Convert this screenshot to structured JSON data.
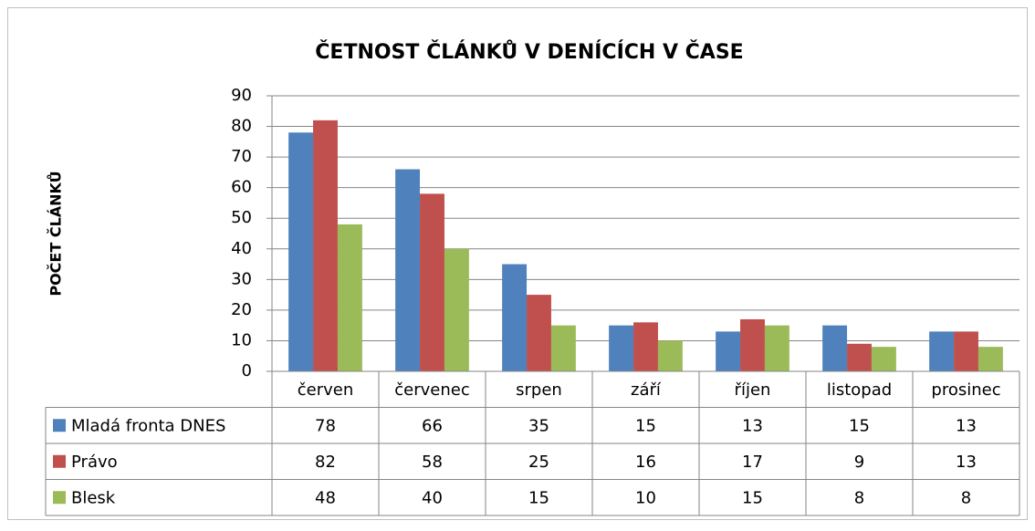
{
  "chart_data": {
    "type": "bar",
    "title": "ČETNOST ČLÁNKŮ V DENÍCÍCH V ČASE",
    "ylabel": "POČET ČLÁNKŮ",
    "categories": [
      "červen",
      "červenec",
      "srpen",
      "září",
      "říjen",
      "listopad",
      "prosinec"
    ],
    "series": [
      {
        "name": "Mladá fronta DNES",
        "color": "#4f81bd",
        "values": [
          78,
          66,
          35,
          15,
          13,
          15,
          13
        ]
      },
      {
        "name": "Právo",
        "color": "#c0504d",
        "values": [
          82,
          58,
          25,
          16,
          17,
          9,
          13
        ]
      },
      {
        "name": "Blesk",
        "color": "#9bbb59",
        "values": [
          48,
          40,
          15,
          10,
          15,
          8,
          8
        ]
      }
    ],
    "ylim": [
      0,
      90
    ],
    "yticks": [
      0,
      10,
      20,
      30,
      40,
      50,
      60,
      70,
      80,
      90
    ],
    "grid": true,
    "data_table": true
  }
}
